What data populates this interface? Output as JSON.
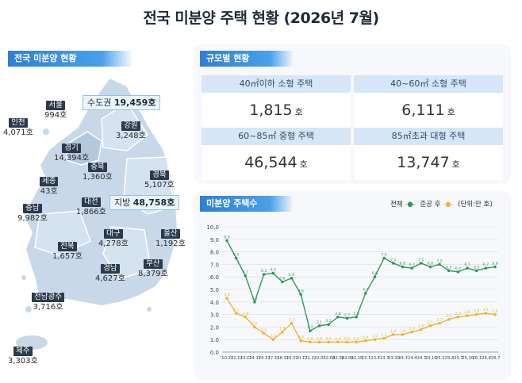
{
  "title": "전국 미분양 주택 현황  (2026년 7월)",
  "map_section": {
    "tag": "전국 미분양 현황",
    "capital_area": {
      "label": "수도권",
      "value": "19,459호"
    },
    "local_area": {
      "label": "지방",
      "value": "48,758호"
    },
    "regions": [
      {
        "name": "서울",
        "value": "994호"
      },
      {
        "name": "인천",
        "value": "4,071호"
      },
      {
        "name": "경기",
        "value": "14,394호"
      },
      {
        "name": "강원",
        "value": "3,248호"
      },
      {
        "name": "충북",
        "value": "1,360호"
      },
      {
        "name": "경북",
        "value": "5,107호"
      },
      {
        "name": "세종",
        "value": "43호"
      },
      {
        "name": "대전",
        "value": "1,866호"
      },
      {
        "name": "충남",
        "value": "9,982호"
      },
      {
        "name": "대구",
        "value": "4,278호"
      },
      {
        "name": "울산",
        "value": "1,192호"
      },
      {
        "name": "전북",
        "value": "1,657호"
      },
      {
        "name": "경남",
        "value": "4,627호"
      },
      {
        "name": "부산",
        "value": "8,379호"
      },
      {
        "name": "전남광주",
        "value": "3,716호"
      },
      {
        "name": "제주",
        "value": "3,303호"
      }
    ]
  },
  "scale_section": {
    "tag": "규모별 현황",
    "cells": [
      {
        "label": "40㎡이하 소형 주택",
        "value": "1,815",
        "unit": "호"
      },
      {
        "label": "40~60㎡ 소형 주택",
        "value": "6,111",
        "unit": "호"
      },
      {
        "label": "60~85㎡ 중형 주택",
        "value": "46,544",
        "unit": "호"
      },
      {
        "label": "85㎡초과 대형 주택",
        "value": "13,747",
        "unit": "호"
      }
    ]
  },
  "chart_section": {
    "tag": "미분양 주택수",
    "legend_total": "전체",
    "legend_completed": "준공 후",
    "unit_note": "(단위:만 호)"
  },
  "colors": {
    "total": "#2e9a5a",
    "completed": "#efb434",
    "accent": "#3a8fe0"
  },
  "chart_data": {
    "type": "line",
    "ylim": [
      0,
      10
    ],
    "yticks": [
      "0.0",
      "1.0",
      "2.0",
      "3.0",
      "4.0",
      "5.0",
      "6.0",
      "7.0",
      "8.0",
      "9.0",
      "10.0"
    ],
    "xtick_labels": [
      "'10.12",
      "'12.12",
      "'13.12",
      "'14.12",
      "'16.12",
      "'17.12",
      "'18.12",
      "'19.12",
      "'20.12",
      "'21.12",
      "'22.02",
      "'22.04",
      "'22.06",
      "'22.08",
      "'22.10",
      "'23.1",
      "'23.4",
      "'23.7",
      "'23.10",
      "'24.1",
      "'24.4",
      "'24.7",
      "'24.10",
      "'25.1",
      "'25.4",
      "'25.7",
      "'25.10",
      "'26.1",
      "'26.4",
      "'26.7"
    ],
    "series": [
      {
        "name": "전체",
        "values": [
          8.9,
          7.5,
          6.1,
          4.0,
          6.2,
          6.3,
          5.6,
          5.9,
          4.6,
          1.7,
          2.1,
          2.2,
          2.8,
          2.7,
          2.8,
          4.7,
          6.0,
          7.5,
          7.1,
          6.8,
          6.7,
          7.1,
          6.8,
          7.0,
          6.5,
          6.4,
          6.7,
          6.5,
          6.7,
          6.8
        ]
      },
      {
        "name": "준공 후",
        "values": [
          4.3,
          3.1,
          2.8,
          2.0,
          1.5,
          1.0,
          1.6,
          2.3,
          0.9,
          0.8,
          0.8,
          0.8,
          0.8,
          0.8,
          0.8,
          0.9,
          1.0,
          1.1,
          1.4,
          1.4,
          1.6,
          1.8,
          2.1,
          2.3,
          2.6,
          2.8,
          2.9,
          3.0,
          3.1,
          3.0
        ]
      }
    ]
  }
}
